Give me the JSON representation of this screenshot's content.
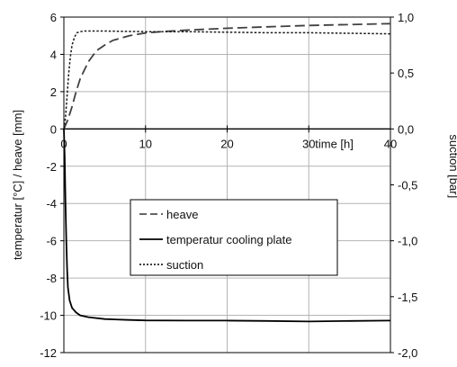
{
  "chart_data": {
    "type": "line",
    "title": "",
    "xlabel": "time [h]",
    "ylabel": "temperatur [°C] / heave [mm]",
    "y2label": "suction [bar]",
    "xlim": [
      0,
      40
    ],
    "ylim": [
      -12,
      6
    ],
    "y2lim": [
      -2.0,
      1.0
    ],
    "grid": true,
    "legend_position": "center-left",
    "x_ticks": [
      "0",
      "10",
      "20",
      "30",
      "40"
    ],
    "y_ticks": [
      "6",
      "4",
      "2",
      "0",
      "-2",
      "-4",
      "-6",
      "-8",
      "-10",
      "-12"
    ],
    "y2_ticks": [
      "1,0",
      "0,5",
      "0,0",
      "-0,5",
      "-1,0",
      "-1,5",
      "-2,0"
    ],
    "series": [
      {
        "name": "heave",
        "axis": "left",
        "style": "dashed",
        "x": [
          0,
          0.5,
          1,
          1.5,
          2,
          3,
          4,
          5,
          6,
          8,
          10,
          12,
          15,
          20,
          25,
          30,
          35,
          40
        ],
        "y": [
          0,
          0.5,
          1.2,
          2.0,
          2.7,
          3.6,
          4.2,
          4.5,
          4.75,
          5.0,
          5.15,
          5.22,
          5.3,
          5.4,
          5.48,
          5.55,
          5.6,
          5.65
        ]
      },
      {
        "name": "temperatur cooling plate",
        "axis": "left",
        "style": "solid",
        "x": [
          0,
          0.1,
          0.2,
          0.3,
          0.4,
          0.5,
          0.7,
          1,
          1.5,
          2,
          3,
          5,
          8,
          10,
          15,
          20,
          25,
          30,
          35,
          40
        ],
        "y": [
          0,
          -1.5,
          -4.0,
          -6.0,
          -7.5,
          -8.5,
          -9.2,
          -9.6,
          -9.85,
          -10.0,
          -10.1,
          -10.2,
          -10.25,
          -10.27,
          -10.28,
          -10.28,
          -10.3,
          -10.33,
          -10.3,
          -10.28
        ]
      },
      {
        "name": "suction",
        "axis": "right",
        "style": "dotted",
        "x": [
          0,
          0.2,
          0.4,
          0.6,
          0.8,
          1,
          1.3,
          1.6,
          2,
          2.5,
          3,
          5,
          10,
          15,
          20,
          25,
          30,
          35,
          40
        ],
        "y": [
          0,
          0.1,
          0.3,
          0.5,
          0.65,
          0.75,
          0.82,
          0.86,
          0.87,
          0.875,
          0.875,
          0.875,
          0.87,
          0.87,
          0.865,
          0.86,
          0.86,
          0.855,
          0.85
        ]
      }
    ]
  }
}
